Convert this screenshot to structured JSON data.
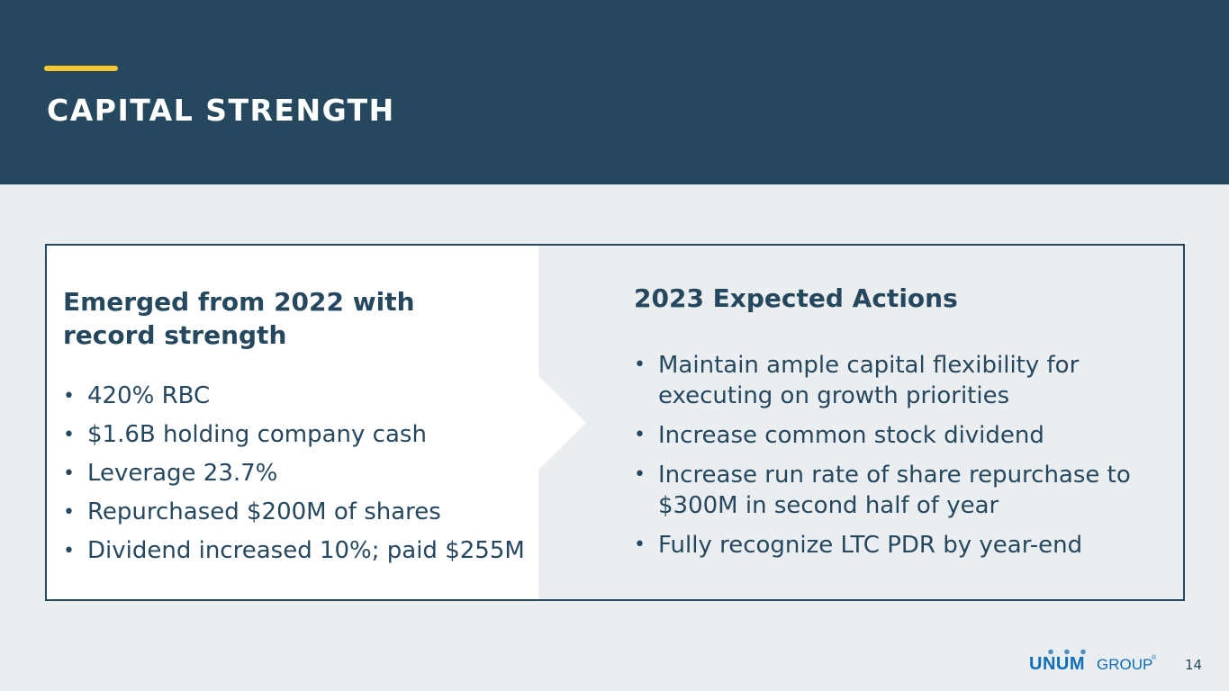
{
  "slide": {
    "title": "CAPITAL STRENGTH",
    "page_number": "14"
  },
  "left_section": {
    "heading": "Emerged from 2022 with record strength",
    "items": [
      "420% RBC",
      "$1.6B holding company cash",
      "Leverage 23.7%",
      "Repurchased $200M of shares",
      "Dividend increased 10%; paid $255M"
    ]
  },
  "right_section": {
    "heading": "2023 Expected Actions",
    "items": [
      "Maintain ample capital flexibility for executing on growth priorities",
      "Increase common stock dividend",
      "Increase run rate of share repurchase to $300M in second half of year",
      "Fully recognize LTC PDR by year-end"
    ]
  },
  "logo": {
    "text_bold": "UNUM",
    "text_light": "GROUP",
    "mark": "®",
    "icon": "unum-group-logo"
  },
  "colors": {
    "navy": "#26485f",
    "accent_yellow": "#f5c831",
    "background": "#ebeef1",
    "logo_blue": "#0e6eb8"
  }
}
